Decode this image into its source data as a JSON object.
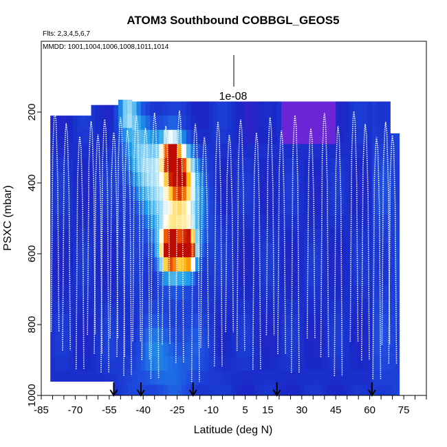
{
  "chart_data": {
    "type": "heatmap",
    "title": "ATOM3 Southbound COBBGL_GEOS5",
    "flights_label": "Flts: 2,3,4,5,6,7",
    "dates_label": "MMDD: 1001,1004,1006,1008,1011,1014",
    "xlabel": "Latitude (deg N)",
    "ylabel": "PSXC (mbar)",
    "xlim": [
      -85,
      85
    ],
    "ylim": [
      1000,
      0
    ],
    "x_ticks": [
      -85,
      -70,
      -55,
      -40,
      -25,
      -10,
      5,
      15,
      30,
      45,
      60,
      75
    ],
    "x_tick_labels": [
      "-85",
      "-70",
      "-55",
      "-40",
      "-25",
      "-10",
      "5",
      "15",
      "30",
      "45",
      "60",
      "75"
    ],
    "y_ticks": [
      200,
      400,
      600,
      800,
      1000
    ],
    "y_tick_labels": [
      "200",
      "400",
      "600",
      "800",
      "1000"
    ],
    "scale_bar_label": "1e-08",
    "grid": false,
    "colors": {
      "background_field": "#1f2fd6",
      "high_values": "#d01000",
      "flight_track": "#ffffff",
      "date_markers": "#000000"
    },
    "date_marker_latitudes": [
      -53,
      -41,
      -18,
      19,
      61
    ],
    "flight_track_turnaround_latitudes": [
      -79,
      -74,
      -68,
      -63,
      -60,
      -57,
      -53,
      -50,
      -47,
      -43,
      -39,
      -35,
      -30,
      -24,
      -17,
      -13,
      -7,
      -2,
      3,
      10,
      16,
      21,
      27,
      34,
      40,
      46,
      53,
      58,
      63,
      67,
      70
    ]
  }
}
